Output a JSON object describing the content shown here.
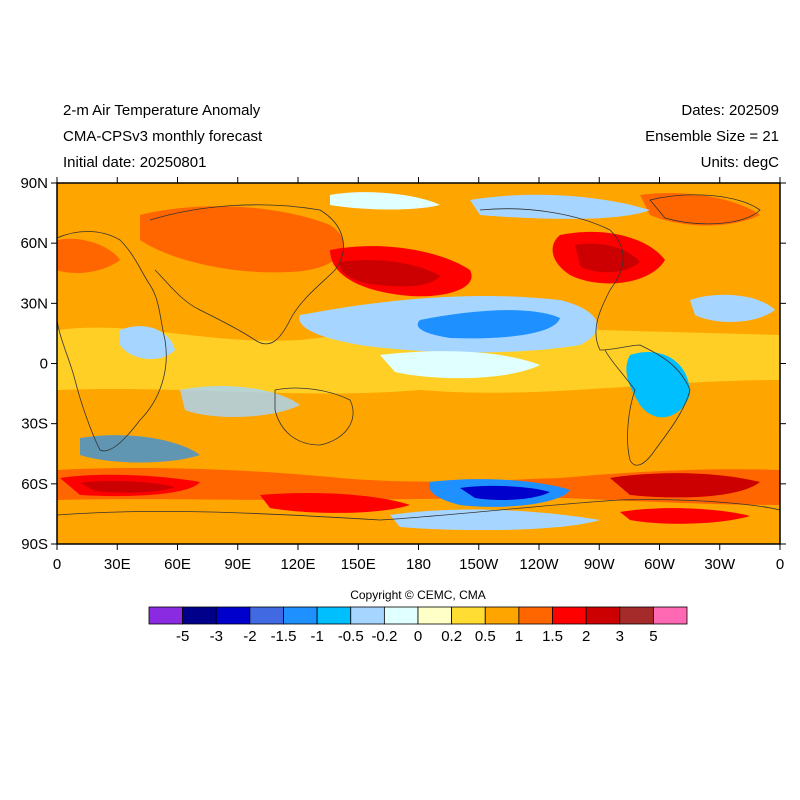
{
  "header": {
    "left": [
      "2-m Air Temperature Anomaly",
      "CMA-CPSv3 monthly forecast",
      "Initial date: 20250801"
    ],
    "right": [
      "Dates: 202509",
      "Ensemble Size = 21",
      "Units: degC"
    ]
  },
  "map": {
    "lat_labels": [
      "90N",
      "60N",
      "30N",
      "0",
      "30S",
      "60S",
      "90S"
    ],
    "lon_labels": [
      "0",
      "30E",
      "60E",
      "90E",
      "120E",
      "150E",
      "180",
      "150W",
      "120W",
      "90W",
      "60W",
      "30W",
      "0"
    ]
  },
  "copyright": "Copyright © CEMC, CMA",
  "colorbar": {
    "levels": [
      "-5",
      "-3",
      "-2",
      "-1.5",
      "-1",
      "-0.5",
      "-0.2",
      "0",
      "0.2",
      "0.5",
      "1",
      "1.5",
      "2",
      "3",
      "5"
    ],
    "colors": [
      "#8a2be2",
      "#00008b",
      "#0000cd",
      "#4169e1",
      "#1e90ff",
      "#00bfff",
      "#a6d6ff",
      "#e0ffff",
      "#ffffc8",
      "#ffdd33",
      "#ffa500",
      "#ff6600",
      "#ff0000",
      "#cc0000",
      "#a52a2a",
      "#ff69b4"
    ]
  }
}
